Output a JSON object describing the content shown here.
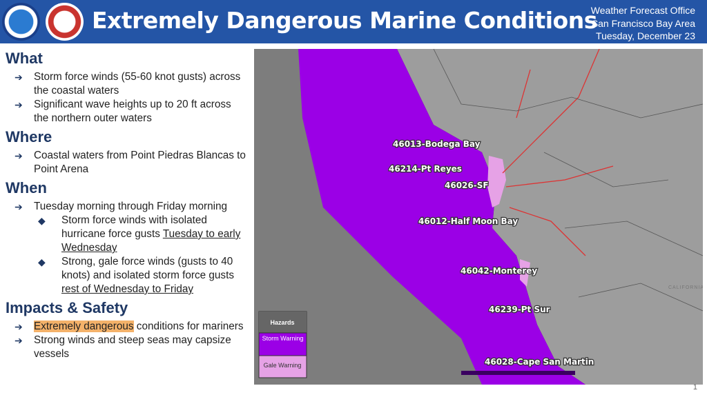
{
  "header": {
    "title": "Extremely Dangerous Marine Conditions",
    "office": "Weather Forecast Office",
    "area": "San Francisco Bay Area",
    "date": "Tuesday, December 23"
  },
  "sections": [
    {
      "heading": "What",
      "items": [
        {
          "parts": [
            "Storm force winds (55-60 knot gusts) across the coastal waters"
          ]
        },
        {
          "parts": [
            "Significant wave heights up to 20 ft across the northern outer waters"
          ]
        }
      ]
    },
    {
      "heading": "Where",
      "items": [
        {
          "parts": [
            "Coastal waters from Point Piedras Blancas to Point Arena"
          ]
        }
      ]
    },
    {
      "heading": "When",
      "items": [
        {
          "parts": [
            "Tuesday morning through Friday morning"
          ]
        },
        {
          "parts": [
            "Storm force winds with isolated hurricane force gusts ",
            "Tuesday to early Wednesday"
          ]
        },
        {
          "parts": [
            "Strong, gale force winds (gusts to 40 knots) and isolated storm force gusts ",
            "rest of Wednesday to Friday"
          ]
        }
      ]
    },
    {
      "heading": "Impacts & Safety",
      "items": [
        {
          "parts": [
            "Extremely dangerous",
            " conditions for mariners"
          ]
        },
        {
          "parts": [
            "Strong winds and steep seas may capsize vessels"
          ]
        }
      ]
    }
  ],
  "map": {
    "buoys": [
      "46013-Bodega Bay",
      "46214-Pt Reyes",
      "46026-SF",
      "46012-Half Moon Bay",
      "46042-Monterey",
      "46239-Pt Sur",
      "46028-Cape San Martin"
    ],
    "state": "CALIFORNIA",
    "legend": {
      "title": "Hazards",
      "storm": "Storm Warning",
      "gale": "Gale Warning"
    }
  },
  "page_number": "1"
}
